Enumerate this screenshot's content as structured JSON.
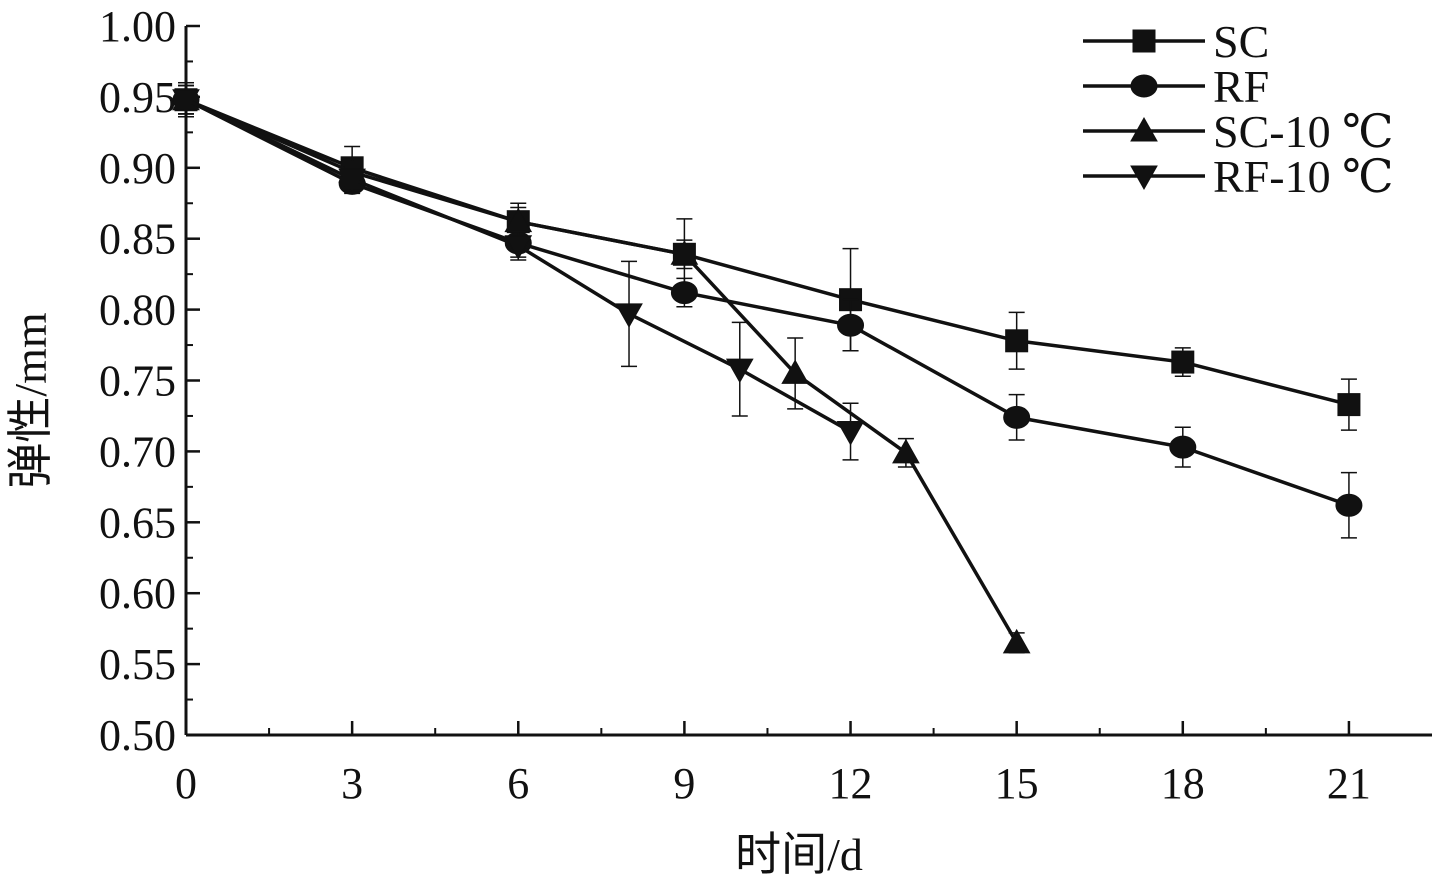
{
  "chart_data": {
    "type": "line",
    "title": "",
    "xlabel": "时间/d",
    "ylabel": "弹性/mm",
    "xlim": [
      0,
      22.5
    ],
    "ylim": [
      0.5,
      1.0
    ],
    "x_ticks": [
      0,
      3,
      6,
      9,
      12,
      15,
      18,
      21
    ],
    "x_tick_labels": [
      "0",
      "3",
      "6",
      "9",
      "12",
      "15",
      "18",
      "21"
    ],
    "y_ticks": [
      0.5,
      0.55,
      0.6,
      0.65,
      0.7,
      0.75,
      0.8,
      0.85,
      0.9,
      0.95,
      1.0
    ],
    "y_tick_labels": [
      "0.50",
      "0.55",
      "0.60",
      "0.65",
      "0.70",
      "0.75",
      "0.80",
      "0.85",
      "0.90",
      "0.95",
      "1.00"
    ],
    "grid": false,
    "legend_position": "top-right",
    "line_color": "#111111",
    "series": [
      {
        "name": "SC",
        "marker": "square",
        "x": [
          0,
          3,
          6,
          9,
          12,
          15,
          18,
          21
        ],
        "y": [
          0.948,
          0.9,
          0.862,
          0.839,
          0.807,
          0.778,
          0.763,
          0.733
        ],
        "error": [
          0.01,
          0.015,
          0.013,
          0.025,
          0.036,
          0.02,
          0.01,
          0.018
        ]
      },
      {
        "name": "RF",
        "marker": "circle",
        "x": [
          0,
          3,
          6,
          9,
          12,
          15,
          18,
          21
        ],
        "y": [
          0.948,
          0.889,
          0.847,
          0.812,
          0.789,
          0.724,
          0.703,
          0.662
        ],
        "error": [
          0.012,
          0.007,
          0.01,
          0.01,
          0.018,
          0.016,
          0.014,
          0.023
        ]
      },
      {
        "name": "SC-10 ℃",
        "marker": "triangle-up",
        "x": [
          0,
          3,
          6,
          9,
          11,
          13,
          15
        ],
        "y": [
          0.948,
          0.897,
          0.862,
          0.839,
          0.755,
          0.699,
          0.565
        ],
        "error": [
          0.01,
          0.01,
          0.01,
          0.01,
          0.025,
          0.01,
          0.007
        ]
      },
      {
        "name": "RF-10 ℃",
        "marker": "triangle-down",
        "x": [
          0,
          3,
          6,
          8,
          10,
          12
        ],
        "y": [
          0.948,
          0.892,
          0.845,
          0.797,
          0.758,
          0.714
        ],
        "error": [
          0.01,
          0.008,
          0.01,
          0.037,
          0.033,
          0.02
        ]
      }
    ]
  }
}
